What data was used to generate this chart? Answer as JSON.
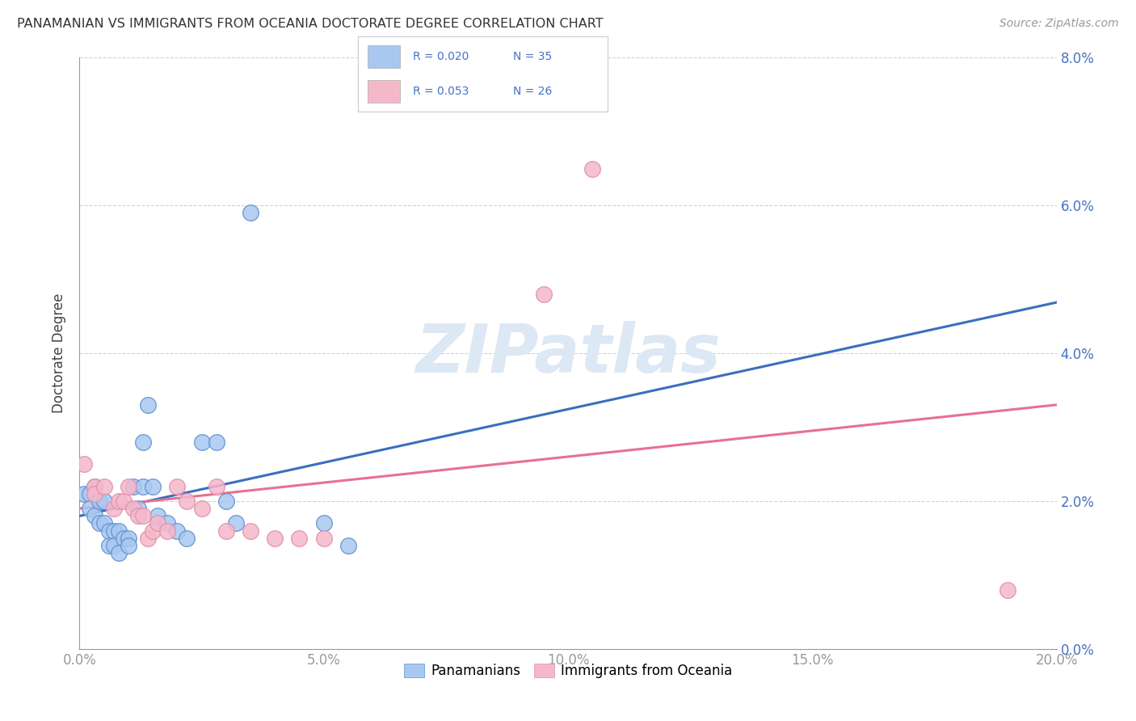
{
  "title": "PANAMANIAN VS IMMIGRANTS FROM OCEANIA DOCTORATE DEGREE CORRELATION CHART",
  "source": "Source: ZipAtlas.com",
  "ylabel": "Doctorate Degree",
  "xlim": [
    0.0,
    0.2
  ],
  "ylim": [
    0.0,
    0.08
  ],
  "xticks": [
    0.0,
    0.05,
    0.1,
    0.15,
    0.2
  ],
  "yticks": [
    0.0,
    0.02,
    0.04,
    0.06,
    0.08
  ],
  "color_blue": "#a8c8f0",
  "color_pink": "#f5b8cb",
  "color_blue_line": "#3b6fbe",
  "color_pink_line": "#e87090",
  "color_blue_edge": "#6090d0",
  "color_pink_edge": "#e090a8",
  "color_text_blue": "#4472c4",
  "color_axis": "#999999",
  "color_grid": "#cccccc",
  "watermark_color": "#dde8f5",
  "scatter_size": 200,
  "background_color": "#ffffff",
  "blue_points": [
    [
      0.001,
      0.021
    ],
    [
      0.002,
      0.021
    ],
    [
      0.002,
      0.019
    ],
    [
      0.003,
      0.022
    ],
    [
      0.003,
      0.018
    ],
    [
      0.004,
      0.02
    ],
    [
      0.004,
      0.017
    ],
    [
      0.005,
      0.02
    ],
    [
      0.005,
      0.017
    ],
    [
      0.006,
      0.016
    ],
    [
      0.006,
      0.014
    ],
    [
      0.007,
      0.016
    ],
    [
      0.007,
      0.014
    ],
    [
      0.008,
      0.016
    ],
    [
      0.008,
      0.013
    ],
    [
      0.009,
      0.015
    ],
    [
      0.01,
      0.015
    ],
    [
      0.01,
      0.014
    ],
    [
      0.011,
      0.022
    ],
    [
      0.012,
      0.019
    ],
    [
      0.013,
      0.028
    ],
    [
      0.013,
      0.022
    ],
    [
      0.014,
      0.033
    ],
    [
      0.015,
      0.022
    ],
    [
      0.016,
      0.018
    ],
    [
      0.018,
      0.017
    ],
    [
      0.02,
      0.016
    ],
    [
      0.022,
      0.015
    ],
    [
      0.025,
      0.028
    ],
    [
      0.028,
      0.028
    ],
    [
      0.03,
      0.02
    ],
    [
      0.032,
      0.017
    ],
    [
      0.035,
      0.059
    ],
    [
      0.05,
      0.017
    ],
    [
      0.055,
      0.014
    ]
  ],
  "pink_points": [
    [
      0.001,
      0.025
    ],
    [
      0.003,
      0.022
    ],
    [
      0.003,
      0.021
    ],
    [
      0.005,
      0.022
    ],
    [
      0.007,
      0.019
    ],
    [
      0.008,
      0.02
    ],
    [
      0.009,
      0.02
    ],
    [
      0.01,
      0.022
    ],
    [
      0.011,
      0.019
    ],
    [
      0.012,
      0.018
    ],
    [
      0.013,
      0.018
    ],
    [
      0.014,
      0.015
    ],
    [
      0.015,
      0.016
    ],
    [
      0.016,
      0.017
    ],
    [
      0.018,
      0.016
    ],
    [
      0.02,
      0.022
    ],
    [
      0.022,
      0.02
    ],
    [
      0.025,
      0.019
    ],
    [
      0.028,
      0.022
    ],
    [
      0.03,
      0.016
    ],
    [
      0.035,
      0.016
    ],
    [
      0.04,
      0.015
    ],
    [
      0.045,
      0.015
    ],
    [
      0.05,
      0.015
    ],
    [
      0.095,
      0.048
    ],
    [
      0.105,
      0.065
    ],
    [
      0.19,
      0.008
    ]
  ]
}
